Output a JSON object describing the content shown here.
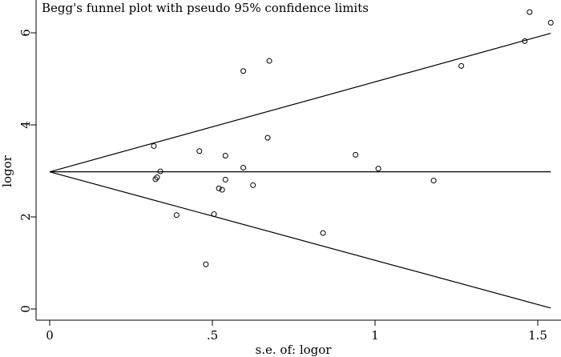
{
  "chart_data": {
    "type": "scatter",
    "title": "Begg's funnel plot with pseudo 95% confidence limits",
    "xlabel": "s.e. of: logor",
    "ylabel": "logor",
    "xlim": [
      0,
      1.55
    ],
    "ylim": [
      0,
      6.8
    ],
    "xticks": [
      {
        "value": 0,
        "label": "0"
      },
      {
        "value": 0.5,
        "label": ".5"
      },
      {
        "value": 1,
        "label": "1"
      },
      {
        "value": 1.5,
        "label": "1.5"
      }
    ],
    "yticks": [
      {
        "value": 0,
        "label": "0"
      },
      {
        "value": 2,
        "label": "2"
      },
      {
        "value": 4,
        "label": "4"
      },
      {
        "value": 6,
        "label": "6"
      }
    ],
    "pooled_estimate": 2.98,
    "pseudo_ci_limits": {
      "center_line": [
        [
          0,
          2.98
        ],
        [
          1.54,
          2.98
        ]
      ],
      "upper_line": [
        [
          0,
          2.98
        ],
        [
          1.54,
          5.99
        ]
      ],
      "lower_line": [
        [
          0,
          2.98
        ],
        [
          1.54,
          0.02
        ]
      ]
    },
    "grid": false,
    "legend": "none",
    "points": [
      {
        "x": 0.32,
        "y": 3.54
      },
      {
        "x": 0.325,
        "y": 2.82
      },
      {
        "x": 0.33,
        "y": 2.86
      },
      {
        "x": 0.34,
        "y": 2.99
      },
      {
        "x": 0.39,
        "y": 2.04
      },
      {
        "x": 0.46,
        "y": 3.43
      },
      {
        "x": 0.48,
        "y": 0.97
      },
      {
        "x": 0.505,
        "y": 2.06
      },
      {
        "x": 0.52,
        "y": 2.62
      },
      {
        "x": 0.53,
        "y": 2.59
      },
      {
        "x": 0.54,
        "y": 2.81
      },
      {
        "x": 0.54,
        "y": 3.33
      },
      {
        "x": 0.595,
        "y": 5.17
      },
      {
        "x": 0.595,
        "y": 3.07
      },
      {
        "x": 0.625,
        "y": 2.69
      },
      {
        "x": 0.675,
        "y": 5.39
      },
      {
        "x": 0.67,
        "y": 3.72
      },
      {
        "x": 0.84,
        "y": 1.65
      },
      {
        "x": 0.94,
        "y": 3.35
      },
      {
        "x": 1.01,
        "y": 3.05
      },
      {
        "x": 1.18,
        "y": 2.79
      },
      {
        "x": 1.265,
        "y": 5.28
      },
      {
        "x": 1.46,
        "y": 5.82
      },
      {
        "x": 1.475,
        "y": 6.45
      },
      {
        "x": 1.54,
        "y": 6.22
      }
    ]
  }
}
